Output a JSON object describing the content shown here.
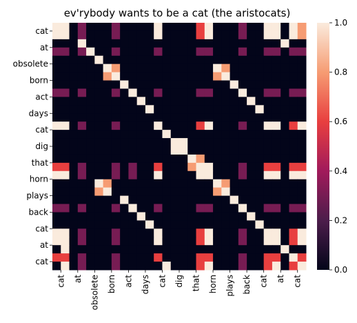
{
  "chart_data": {
    "type": "heatmap",
    "title": "ev'rybody wants to be a cat (the aristocats)",
    "x_tick_labels": [
      "cat",
      "at",
      "obsolete",
      "born",
      "act",
      "days",
      "cat",
      "dig",
      "that",
      "horn",
      "plays",
      "back",
      "cat",
      "at",
      "cat"
    ],
    "y_tick_labels": [
      "cat",
      "at",
      "obsolete",
      "born",
      "act",
      "days",
      "cat",
      "dig",
      "that",
      "horn",
      "plays",
      "back",
      "cat",
      "at",
      "cat"
    ],
    "colorbar": {
      "range": [
        0.0,
        1.0
      ],
      "ticks": [
        0.0,
        0.2,
        0.4,
        0.6,
        0.8,
        1.0
      ],
      "tick_labels": [
        "0.0",
        "0.2",
        "0.4",
        "0.6",
        "0.8",
        "1.0"
      ]
    },
    "colormap_stops": [
      {
        "t": 0.0,
        "color": "#03051a"
      },
      {
        "t": 0.2,
        "color": "#4c1d4b"
      },
      {
        "t": 0.4,
        "color": "#a11a5b"
      },
      {
        "t": 0.6,
        "color": "#e83f3f"
      },
      {
        "t": 0.8,
        "color": "#f69c73"
      },
      {
        "t": 1.0,
        "color": "#faebdd"
      }
    ],
    "values": [
      [
        1.0,
        1.0,
        0.0,
        0.3,
        0.0,
        0.0,
        0.0,
        0.3,
        0.0,
        0.0,
        0.0,
        0.0,
        1.0,
        0.0,
        0.0,
        0.0,
        0.0,
        0.6,
        1.0,
        0.0,
        0.0,
        0.0,
        0.3,
        0.0,
        0.0,
        1.0,
        1.0,
        0.0,
        1.0,
        0.8
      ],
      [
        1.0,
        1.0,
        0.0,
        0.3,
        0.0,
        0.0,
        0.0,
        0.3,
        0.0,
        0.0,
        0.0,
        0.0,
        1.0,
        0.0,
        0.0,
        0.0,
        0.0,
        0.6,
        1.0,
        0.0,
        0.0,
        0.0,
        0.3,
        0.0,
        0.0,
        1.0,
        1.0,
        0.0,
        1.0,
        0.8
      ],
      [
        0.0,
        0.0,
        0.0,
        1.0,
        0.0,
        0.0,
        0.0,
        0.0,
        0.0,
        0.0,
        0.0,
        0.0,
        0.0,
        0.0,
        0.0,
        0.0,
        0.0,
        0.0,
        0.0,
        0.0,
        0.0,
        0.0,
        0.0,
        0.0,
        0.0,
        0.0,
        0.0,
        1.0,
        0.0,
        0.0
      ],
      [
        0.3,
        0.3,
        0.0,
        0.3,
        1.0,
        0.0,
        0.0,
        0.3,
        0.0,
        0.0,
        0.0,
        0.0,
        0.3,
        0.0,
        0.0,
        0.0,
        0.0,
        0.3,
        0.3,
        0.0,
        0.0,
        0.0,
        0.3,
        0.0,
        0.0,
        0.3,
        0.3,
        0.0,
        0.3,
        0.3
      ],
      [
        0.0,
        0.0,
        0.0,
        0.0,
        0.0,
        1.0,
        0.0,
        0.0,
        0.0,
        0.0,
        0.0,
        0.0,
        0.0,
        0.0,
        0.0,
        0.0,
        0.0,
        0.0,
        0.0,
        0.0,
        0.0,
        0.0,
        0.0,
        0.0,
        0.0,
        0.0,
        0.0,
        0.0,
        0.0,
        0.0
      ],
      [
        0.0,
        0.0,
        0.0,
        0.0,
        0.0,
        0.0,
        1.0,
        0.8,
        0.0,
        0.0,
        0.0,
        0.0,
        0.0,
        0.0,
        0.0,
        0.0,
        0.0,
        0.0,
        0.0,
        1.0,
        0.8,
        0.0,
        0.0,
        0.0,
        0.0,
        0.0,
        0.0,
        0.0,
        0.0,
        0.0
      ],
      [
        0.0,
        0.0,
        0.0,
        0.0,
        0.0,
        0.0,
        0.8,
        1.0,
        0.0,
        0.0,
        0.0,
        0.0,
        0.0,
        0.0,
        0.0,
        0.0,
        0.0,
        0.0,
        0.0,
        0.8,
        1.0,
        0.0,
        0.0,
        0.0,
        0.0,
        0.0,
        0.0,
        0.0,
        0.0,
        0.0
      ],
      [
        0.0,
        0.0,
        0.0,
        0.0,
        0.0,
        0.0,
        0.0,
        0.0,
        1.0,
        0.0,
        0.0,
        0.0,
        0.0,
        0.0,
        0.0,
        0.0,
        0.0,
        0.0,
        0.0,
        0.0,
        0.0,
        1.0,
        0.0,
        0.0,
        0.0,
        0.0,
        0.0,
        0.0,
        0.0,
        0.0
      ],
      [
        0.3,
        0.3,
        0.0,
        0.3,
        0.0,
        0.0,
        0.0,
        0.3,
        0.0,
        1.0,
        0.0,
        0.0,
        0.3,
        0.0,
        0.0,
        0.0,
        0.0,
        0.3,
        0.3,
        0.0,
        0.0,
        0.0,
        1.0,
        0.0,
        0.0,
        0.3,
        0.3,
        0.0,
        0.3,
        0.3
      ],
      [
        0.0,
        0.0,
        0.0,
        0.0,
        0.0,
        0.0,
        0.0,
        0.0,
        0.0,
        0.0,
        1.0,
        0.0,
        0.0,
        0.0,
        0.0,
        0.0,
        0.0,
        0.0,
        0.0,
        0.0,
        0.0,
        0.0,
        0.0,
        1.0,
        0.0,
        0.0,
        0.0,
        0.0,
        0.0,
        0.0
      ],
      [
        0.0,
        0.0,
        0.0,
        0.0,
        0.0,
        0.0,
        0.0,
        0.0,
        0.0,
        0.0,
        0.0,
        1.0,
        0.0,
        0.0,
        0.0,
        0.0,
        0.0,
        0.0,
        0.0,
        0.0,
        0.0,
        0.0,
        0.0,
        0.0,
        1.0,
        0.0,
        0.0,
        0.0,
        0.0,
        0.0
      ],
      [
        0.0,
        0.0,
        0.0,
        0.0,
        0.0,
        0.0,
        0.0,
        0.0,
        0.0,
        0.0,
        0.0,
        0.0,
        0.0,
        0.0,
        0.0,
        0.0,
        0.0,
        0.0,
        0.0,
        0.0,
        0.0,
        0.0,
        0.0,
        0.0,
        0.0,
        0.0,
        0.0,
        0.0,
        0.0,
        0.0
      ],
      [
        1.0,
        1.0,
        0.0,
        0.3,
        0.0,
        0.0,
        0.0,
        0.3,
        0.0,
        0.0,
        0.0,
        0.0,
        1.0,
        0.0,
        0.0,
        0.0,
        0.0,
        0.6,
        1.0,
        0.0,
        0.0,
        0.0,
        0.3,
        0.0,
        0.0,
        1.0,
        1.0,
        0.0,
        0.6,
        1.0
      ],
      [
        0.0,
        0.0,
        0.0,
        0.0,
        0.0,
        0.0,
        0.0,
        0.0,
        0.0,
        0.0,
        0.0,
        0.0,
        0.0,
        1.0,
        0.0,
        0.0,
        0.0,
        0.0,
        0.0,
        0.0,
        0.0,
        0.0,
        0.0,
        0.0,
        0.0,
        0.0,
        0.0,
        0.0,
        0.0,
        0.0
      ],
      [
        0.0,
        0.0,
        0.0,
        0.0,
        0.0,
        0.0,
        0.0,
        0.0,
        0.0,
        0.0,
        0.0,
        0.0,
        0.0,
        0.0,
        1.0,
        1.0,
        0.0,
        0.0,
        0.0,
        0.0,
        0.0,
        0.0,
        0.0,
        0.0,
        0.0,
        0.0,
        0.0,
        0.0,
        0.0,
        0.0
      ],
      [
        0.0,
        0.0,
        0.0,
        0.0,
        0.0,
        0.0,
        0.0,
        0.0,
        0.0,
        0.0,
        0.0,
        0.0,
        0.0,
        0.0,
        1.0,
        1.0,
        0.0,
        0.0,
        0.0,
        0.0,
        0.0,
        0.0,
        0.0,
        0.0,
        0.0,
        0.0,
        0.0,
        0.0,
        0.0,
        0.0
      ],
      [
        0.0,
        0.0,
        0.0,
        0.0,
        0.0,
        0.0,
        0.0,
        0.0,
        0.0,
        0.0,
        0.0,
        0.0,
        0.0,
        0.0,
        0.0,
        0.0,
        1.0,
        0.8,
        0.0,
        0.0,
        0.0,
        0.0,
        0.0,
        0.0,
        0.0,
        0.0,
        0.0,
        0.0,
        0.0,
        0.0
      ],
      [
        0.6,
        0.6,
        0.0,
        0.3,
        0.0,
        0.0,
        0.0,
        0.3,
        0.0,
        0.3,
        0.0,
        0.0,
        0.6,
        0.0,
        0.0,
        0.0,
        0.8,
        1.0,
        1.0,
        0.0,
        0.0,
        0.0,
        0.3,
        0.0,
        0.0,
        0.6,
        0.6,
        0.0,
        0.6,
        0.6
      ],
      [
        1.0,
        1.0,
        0.0,
        0.3,
        0.0,
        0.0,
        0.0,
        0.3,
        0.0,
        0.3,
        0.0,
        0.0,
        1.0,
        0.0,
        0.0,
        0.0,
        0.0,
        1.0,
        1.0,
        0.0,
        0.0,
        0.0,
        0.3,
        0.0,
        0.0,
        1.0,
        1.0,
        0.0,
        1.0,
        1.0
      ],
      [
        0.0,
        0.0,
        0.0,
        0.0,
        0.0,
        1.0,
        0.8,
        0.0,
        0.0,
        0.0,
        0.0,
        0.0,
        0.0,
        0.0,
        0.0,
        0.0,
        0.0,
        0.0,
        0.0,
        1.0,
        0.8,
        0.0,
        0.0,
        0.0,
        0.0,
        0.0,
        0.0,
        0.0,
        0.0,
        0.0
      ],
      [
        0.0,
        0.0,
        0.0,
        0.0,
        0.0,
        0.8,
        1.0,
        0.0,
        0.0,
        0.0,
        0.0,
        0.0,
        0.0,
        0.0,
        0.0,
        0.0,
        0.0,
        0.0,
        0.0,
        0.8,
        1.0,
        0.0,
        0.0,
        0.0,
        0.0,
        0.0,
        0.0,
        0.0,
        0.0,
        0.0
      ],
      [
        0.0,
        0.0,
        0.0,
        0.0,
        0.0,
        0.0,
        0.0,
        0.0,
        1.0,
        0.0,
        0.0,
        0.0,
        0.0,
        0.0,
        0.0,
        0.0,
        0.0,
        0.0,
        0.0,
        0.0,
        0.0,
        1.0,
        0.0,
        0.0,
        0.0,
        0.0,
        0.0,
        0.0,
        0.0,
        0.0
      ],
      [
        0.3,
        0.3,
        0.0,
        0.3,
        0.0,
        0.0,
        0.0,
        0.3,
        0.0,
        1.0,
        0.0,
        0.0,
        0.3,
        0.0,
        0.0,
        0.0,
        0.0,
        0.3,
        0.3,
        0.0,
        0.0,
        0.0,
        1.0,
        0.0,
        0.0,
        0.3,
        0.3,
        0.0,
        0.3,
        0.3
      ],
      [
        0.0,
        0.0,
        0.0,
        0.0,
        0.0,
        0.0,
        0.0,
        0.0,
        0.0,
        0.0,
        1.0,
        0.0,
        0.0,
        0.0,
        0.0,
        0.0,
        0.0,
        0.0,
        0.0,
        0.0,
        0.0,
        0.0,
        0.0,
        1.0,
        0.0,
        0.0,
        0.0,
        0.0,
        0.0,
        0.0
      ],
      [
        0.0,
        0.0,
        0.0,
        0.0,
        0.0,
        0.0,
        0.0,
        0.0,
        0.0,
        0.0,
        0.0,
        1.0,
        0.0,
        0.0,
        0.0,
        0.0,
        0.0,
        0.0,
        0.0,
        0.0,
        0.0,
        0.0,
        0.0,
        0.0,
        1.0,
        0.0,
        0.0,
        0.0,
        0.0,
        0.0
      ],
      [
        1.0,
        1.0,
        0.0,
        0.3,
        0.0,
        0.0,
        0.0,
        0.3,
        0.0,
        0.0,
        0.0,
        0.0,
        1.0,
        0.0,
        0.0,
        0.0,
        0.0,
        0.6,
        1.0,
        0.0,
        0.0,
        0.0,
        0.3,
        0.0,
        0.0,
        1.0,
        1.0,
        0.0,
        0.6,
        1.0
      ],
      [
        1.0,
        1.0,
        0.0,
        0.3,
        0.0,
        0.0,
        0.0,
        0.3,
        0.0,
        0.0,
        0.0,
        0.0,
        1.0,
        0.0,
        0.0,
        0.0,
        0.0,
        0.6,
        1.0,
        0.0,
        0.0,
        0.0,
        0.3,
        0.0,
        0.0,
        1.0,
        1.0,
        0.0,
        0.6,
        1.0
      ],
      [
        0.0,
        1.0,
        0.0,
        0.0,
        0.0,
        0.0,
        0.0,
        0.0,
        0.0,
        0.0,
        0.0,
        0.0,
        0.0,
        0.0,
        0.0,
        0.0,
        0.0,
        0.0,
        0.0,
        0.0,
        0.0,
        0.0,
        0.0,
        0.0,
        0.0,
        0.0,
        0.0,
        1.0,
        0.0,
        0.0
      ],
      [
        0.6,
        0.6,
        0.0,
        0.3,
        0.0,
        0.0,
        0.0,
        0.3,
        0.0,
        0.0,
        0.0,
        0.0,
        0.6,
        0.0,
        0.0,
        0.0,
        0.0,
        0.6,
        0.6,
        0.0,
        0.0,
        0.0,
        0.3,
        0.0,
        0.0,
        0.6,
        0.6,
        0.0,
        1.0,
        0.6
      ],
      [
        0.0,
        1.0,
        0.0,
        0.3,
        0.0,
        0.0,
        0.0,
        0.3,
        0.0,
        0.0,
        0.0,
        0.0,
        0.0,
        1.0,
        0.0,
        0.0,
        0.0,
        0.6,
        1.0,
        0.0,
        0.0,
        0.0,
        0.3,
        0.0,
        0.0,
        0.6,
        1.0,
        0.0,
        0.6,
        1.0
      ]
    ]
  }
}
